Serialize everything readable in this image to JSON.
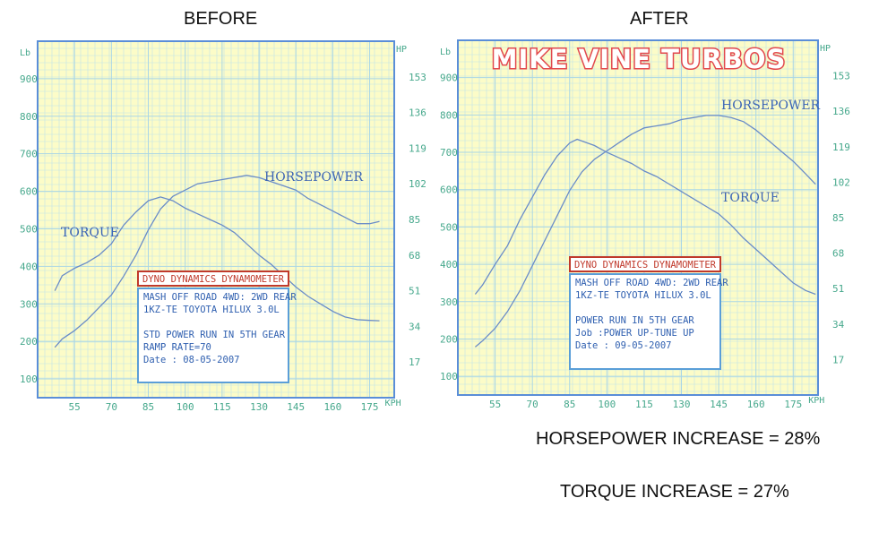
{
  "headings": {
    "before": "BEFORE",
    "after": "AFTER"
  },
  "notes": {
    "horsepower_increase": "HORSEPOWER INCREASE = 28%",
    "torque_increase": "TORQUE INCREASE = 27%"
  },
  "colors": {
    "paper": "#fcfcc8",
    "grid": "#bfe2ea",
    "frame": "#5a8ed8",
    "curve": "#6a8cc8",
    "axis_text": "#46a88c",
    "box_border": "#5a9ed8",
    "box_title": "#c0392b",
    "logo": "#e2484d"
  },
  "chart_data": [
    {
      "type": "line",
      "title": "BEFORE",
      "x_unit": "KPH",
      "y_left_unit": "Lb",
      "y_right_unit": "HP",
      "xlim": [
        40,
        185
      ],
      "y_left_lim": [
        50,
        1000
      ],
      "y_right_lim": [
        0,
        170
      ],
      "x_ticks": [
        55,
        70,
        85,
        100,
        115,
        130,
        145,
        160,
        175
      ],
      "y_left_ticks": [
        100,
        200,
        300,
        400,
        500,
        600,
        700,
        800,
        900
      ],
      "y_right_ticks": [
        17,
        34,
        51,
        68,
        85,
        102,
        119,
        136,
        153
      ],
      "series": [
        {
          "name": "TORQUE",
          "axis": "left",
          "x": [
            47,
            50,
            55,
            60,
            65,
            70,
            75,
            80,
            85,
            90,
            95,
            100,
            105,
            110,
            115,
            120,
            125,
            130,
            135,
            140,
            145,
            150,
            155,
            160,
            165,
            170,
            175,
            179
          ],
          "y": [
            335,
            375,
            395,
            410,
            430,
            460,
            510,
            545,
            575,
            585,
            575,
            555,
            540,
            525,
            510,
            490,
            460,
            430,
            405,
            375,
            345,
            320,
            300,
            280,
            265,
            258,
            256,
            255
          ]
        },
        {
          "name": "HORSEPOWER",
          "axis": "right",
          "x": [
            47,
            50,
            55,
            60,
            65,
            70,
            75,
            80,
            85,
            90,
            95,
            100,
            105,
            110,
            115,
            120,
            125,
            130,
            135,
            140,
            145,
            150,
            155,
            160,
            165,
            170,
            175,
            179
          ],
          "y": [
            24,
            28,
            32,
            37,
            43,
            49,
            58,
            68,
            80,
            90,
            96,
            99,
            102,
            103,
            104,
            105,
            106,
            105,
            103,
            101,
            99,
            95,
            92,
            89,
            86,
            83,
            83,
            84
          ]
        }
      ],
      "info_box": {
        "title": "DYNO DYNAMICS DYNAMOMETER",
        "lines": [
          "MASH OFF ROAD 4WD: 2WD REAR",
          "1KZ-TE TOYOTA HILUX  3.0L",
          "",
          "STD POWER RUN IN 5TH GEAR",
          "RAMP RATE=70",
          "Date      : 08-05-2007"
        ]
      }
    },
    {
      "type": "line",
      "title": "AFTER",
      "logo": "MIKE VINE TURBOS",
      "x_unit": "KPH",
      "y_left_unit": "Lb",
      "y_right_unit": "HP",
      "xlim": [
        40,
        185
      ],
      "y_left_lim": [
        50,
        1000
      ],
      "y_right_lim": [
        0,
        170
      ],
      "x_ticks": [
        55,
        70,
        85,
        100,
        115,
        130,
        145,
        160,
        175
      ],
      "y_left_ticks": [
        100,
        200,
        300,
        400,
        500,
        600,
        700,
        800,
        900
      ],
      "y_right_ticks": [
        17,
        34,
        51,
        68,
        85,
        102,
        119,
        136,
        153
      ],
      "series": [
        {
          "name": "TORQUE",
          "axis": "left",
          "x": [
            47,
            50,
            55,
            60,
            65,
            70,
            75,
            80,
            85,
            88,
            90,
            95,
            100,
            105,
            110,
            115,
            120,
            125,
            130,
            135,
            140,
            145,
            150,
            155,
            160,
            165,
            170,
            175,
            180,
            184
          ],
          "y": [
            320,
            345,
            400,
            450,
            520,
            580,
            640,
            690,
            725,
            735,
            730,
            718,
            700,
            685,
            670,
            650,
            635,
            615,
            595,
            575,
            555,
            535,
            505,
            470,
            440,
            410,
            380,
            350,
            330,
            320
          ]
        },
        {
          "name": "HORSEPOWER",
          "axis": "right",
          "x": [
            47,
            50,
            55,
            60,
            65,
            70,
            75,
            80,
            85,
            90,
            95,
            100,
            105,
            110,
            115,
            120,
            125,
            130,
            135,
            140,
            145,
            150,
            155,
            160,
            165,
            170,
            175,
            180,
            184
          ],
          "y": [
            23,
            26,
            32,
            40,
            50,
            62,
            74,
            86,
            98,
            107,
            113,
            117,
            121,
            125,
            128,
            129,
            130,
            132,
            133,
            134,
            134,
            133,
            131,
            127,
            122,
            117,
            112,
            106,
            101
          ]
        }
      ],
      "info_box": {
        "title": "DYNO DYNAMICS DYNAMOMETER",
        "lines": [
          "MASH OFF ROAD 4WD: 2WD REAR",
          "1KZ-TE TOYOTA HILUX 3.0L",
          "",
          "POWER RUN IN 5TH GEAR",
          "Job     :POWER UP-TUNE UP",
          "Date    : 09-05-2007"
        ]
      }
    }
  ]
}
